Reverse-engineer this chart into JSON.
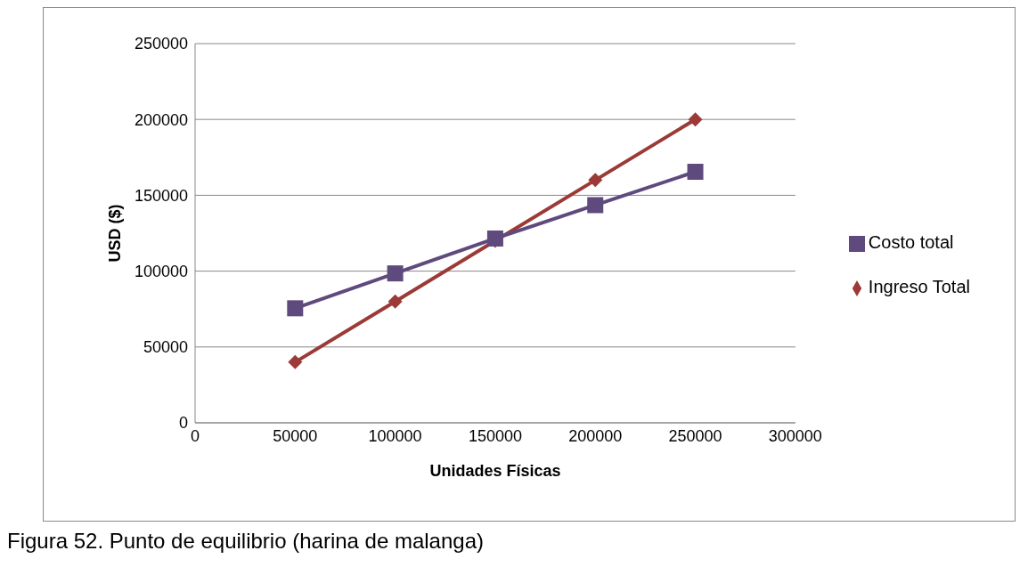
{
  "chart_data": {
    "type": "line",
    "xlabel": "Unidades Físicas",
    "ylabel": "USD ($)",
    "x": [
      50000,
      100000,
      150000,
      200000,
      250000
    ],
    "series": [
      {
        "name": "Ingreso Total",
        "color": "#9b3a36",
        "marker": "diamond",
        "values": [
          40000,
          80000,
          120000,
          160000,
          200000
        ]
      },
      {
        "name": "Costo total",
        "color": "#5f4a7e",
        "marker": "square",
        "values": [
          75500,
          98500,
          121500,
          143500,
          165500
        ]
      }
    ],
    "xlim": [
      0,
      300000
    ],
    "xticks": [
      0,
      50000,
      100000,
      150000,
      200000,
      250000,
      300000
    ],
    "ylim": [
      0,
      250000
    ],
    "yticks": [
      0,
      50000,
      100000,
      150000,
      200000,
      250000
    ],
    "grid": "y",
    "legend": "right",
    "annotations": [
      "Figura 52. Punto de equilibrio (harina de malanga)"
    ]
  }
}
